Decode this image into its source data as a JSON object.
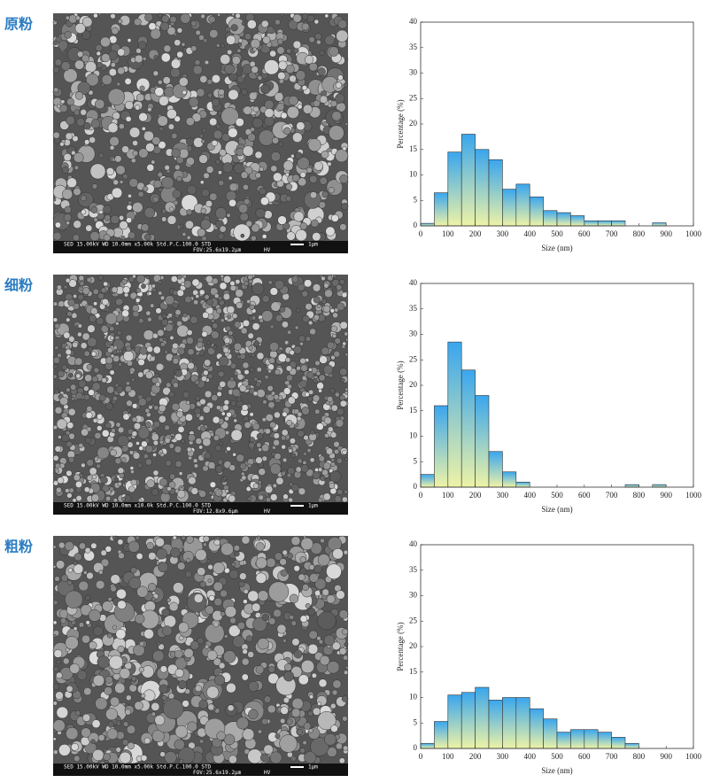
{
  "panels": [
    {
      "label": "原粉",
      "sem": {
        "info_line1": "SED   15.00kV WD 10.0mm  x5.00k Std.P.C.100.0 STD",
        "scale": "1μm",
        "info_line2": "FOV:25.6x19.2μm",
        "hv": "HV"
      }
    },
    {
      "label": "细粉",
      "sem": {
        "info_line1": "SED   15.00kV WD 10.0mm  x10.0k Std.P.C.100.0 STD",
        "scale": "1μm",
        "info_line2": "FOV:12.8x9.6μm",
        "hv": "HV"
      }
    },
    {
      "label": "粗粉",
      "sem": {
        "info_line1": "SED   15.00kV WD 10.0mm  x5.00k Std.P.C.100.0 STD",
        "scale": "1μm",
        "info_line2": "FOV:25.6x19.2μm",
        "hv": "HV"
      }
    }
  ],
  "chart_data": [
    {
      "type": "histogram",
      "x_label": "Size (nm)",
      "y_label": "Percentage (%)",
      "bins": [
        0,
        50,
        100,
        150,
        200,
        250,
        300,
        350,
        400,
        450,
        500,
        550,
        600,
        650,
        700,
        750,
        800,
        850,
        900,
        950,
        1000
      ],
      "values": [
        0.5,
        6.5,
        14.5,
        18,
        15,
        13,
        7.2,
        8.2,
        5.7,
        3,
        2.6,
        2,
        1,
        1,
        1,
        0,
        0,
        0.6,
        0,
        0
      ],
      "gradient": [
        "#3aa6ee",
        "#eef3a6"
      ],
      "xlim": [
        0,
        1000
      ],
      "xticks": [
        0,
        100,
        200,
        300,
        400,
        500,
        600,
        700,
        800,
        900,
        1000
      ],
      "ylim": [
        0,
        40
      ],
      "yticks": [
        0,
        5,
        10,
        15,
        20,
        25,
        30,
        35,
        40
      ]
    },
    {
      "type": "histogram",
      "x_label": "Size (nm)",
      "y_label": "Percentage (%)",
      "bins": [
        0,
        50,
        100,
        150,
        200,
        250,
        300,
        350,
        400,
        450,
        500,
        550,
        600,
        650,
        700,
        750,
        800,
        850,
        900,
        950,
        1000
      ],
      "values": [
        2.5,
        16,
        28.5,
        23,
        18,
        7,
        3,
        1,
        0,
        0,
        0,
        0,
        0,
        0,
        0,
        0.5,
        0,
        0.5,
        0,
        0
      ],
      "gradient": [
        "#3aa6ee",
        "#eef3a6"
      ],
      "xlim": [
        0,
        1000
      ],
      "xticks": [
        0,
        100,
        200,
        300,
        400,
        500,
        600,
        700,
        800,
        900,
        1000
      ],
      "ylim": [
        0,
        40
      ],
      "yticks": [
        0,
        5,
        10,
        15,
        20,
        25,
        30,
        35,
        40
      ]
    },
    {
      "type": "histogram",
      "x_label": "Size (nm)",
      "y_label": "Percentage (%)",
      "bins": [
        0,
        50,
        100,
        150,
        200,
        250,
        300,
        350,
        400,
        450,
        500,
        550,
        600,
        650,
        700,
        750,
        800,
        850,
        900,
        950,
        1000
      ],
      "values": [
        1,
        5.3,
        10.5,
        11,
        12,
        9.5,
        10,
        10,
        7.8,
        5.8,
        3.2,
        3.7,
        3.7,
        3.2,
        2.2,
        1,
        0,
        0,
        0,
        0
      ],
      "gradient": [
        "#3aa6ee",
        "#eef3a6"
      ],
      "xlim": [
        0,
        1000
      ],
      "xticks": [
        0,
        100,
        200,
        300,
        400,
        500,
        600,
        700,
        800,
        900,
        1000
      ],
      "ylim": [
        0,
        40
      ],
      "yticks": [
        0,
        5,
        10,
        15,
        20,
        25,
        30,
        35,
        40
      ]
    }
  ]
}
